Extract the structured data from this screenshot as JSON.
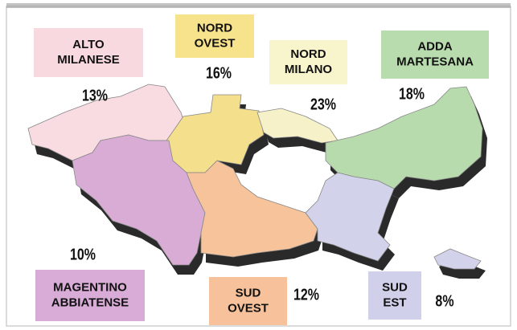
{
  "regions": [
    {
      "label": [
        "ALTO",
        "MILANESE"
      ],
      "share": "13%"
    },
    {
      "label": [
        "NORD",
        "OVEST"
      ],
      "share": "16%"
    },
    {
      "label": [
        "NORD",
        "MILANO"
      ],
      "share": "23%"
    },
    {
      "label": [
        "ADDA",
        "MARTESANA"
      ],
      "share": "18%"
    },
    {
      "label": [
        "MAGENTINO",
        "ABBIATENSE"
      ],
      "share": "10%"
    },
    {
      "label": [
        "SUD",
        "OVEST"
      ],
      "share": "12%"
    },
    {
      "label": [
        "SUD",
        "EST"
      ],
      "share": "8%"
    }
  ]
}
